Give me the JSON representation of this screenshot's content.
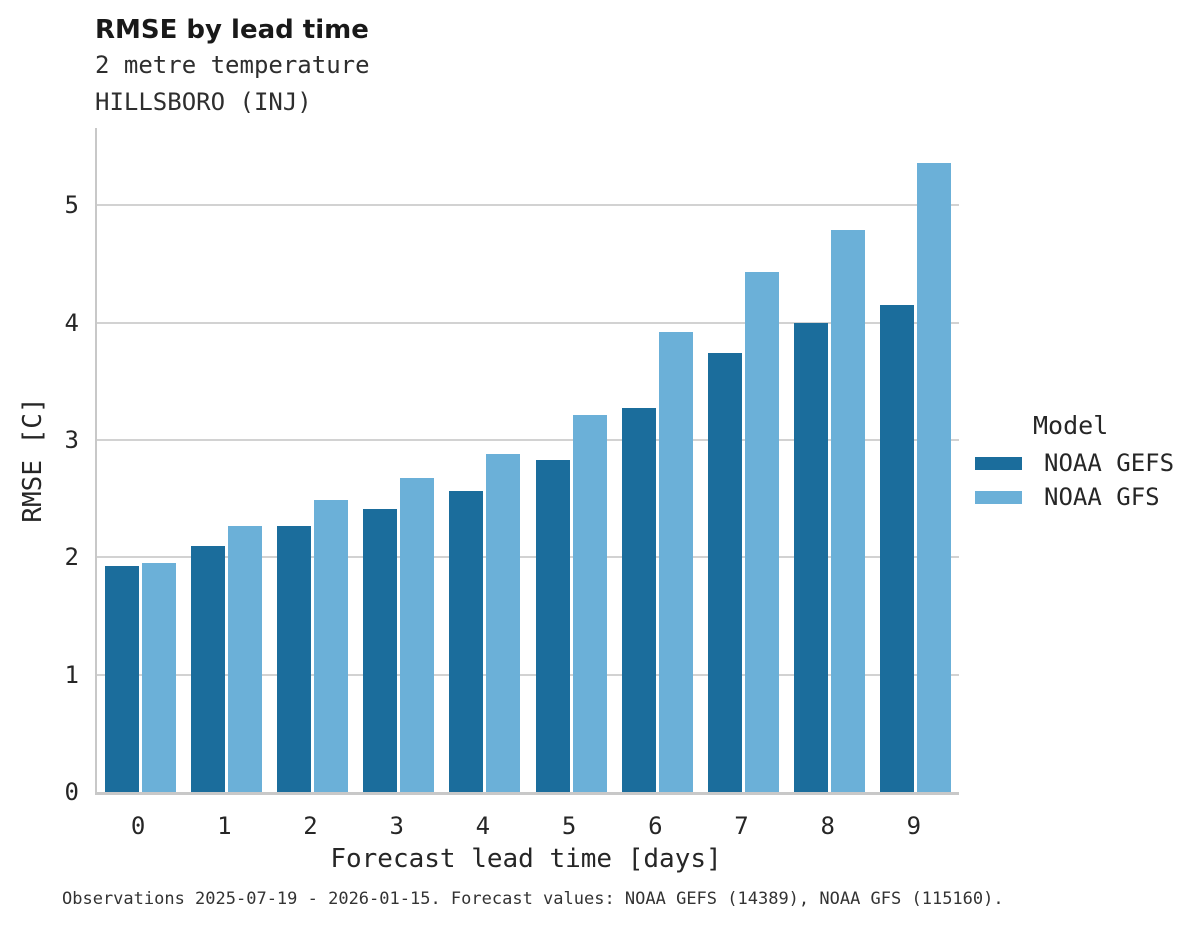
{
  "header": {
    "title": "RMSE by lead time",
    "subtitle_variable": "2 metre temperature",
    "subtitle_station": "HILLSBORO (INJ)"
  },
  "chart_data": {
    "type": "bar",
    "title": "RMSE by lead time",
    "subtitle": [
      "2 metre temperature",
      "HILLSBORO (INJ)"
    ],
    "categories": [
      "0",
      "1",
      "2",
      "3",
      "4",
      "5",
      "6",
      "7",
      "8",
      "9"
    ],
    "series": [
      {
        "name": "NOAA GEFS",
        "color": "#1b6d9c",
        "values": [
          1.93,
          2.1,
          2.27,
          2.41,
          2.57,
          2.83,
          3.27,
          3.74,
          4.0,
          4.15
        ]
      },
      {
        "name": "NOAA GFS",
        "color": "#6bb0d8",
        "values": [
          1.95,
          2.27,
          2.49,
          2.68,
          2.88,
          3.21,
          3.92,
          4.43,
          4.79,
          5.36
        ]
      }
    ],
    "xlabel": "Forecast lead time [days]",
    "ylabel": "RMSE [C]",
    "ylim": [
      0,
      5.66
    ],
    "yticks": [
      0,
      1,
      2,
      3,
      4,
      5
    ],
    "grid": "horizontal",
    "legend_position": "right"
  },
  "legend": {
    "title": "Model",
    "items": [
      {
        "label": "NOAA GEFS"
      },
      {
        "label": "NOAA GFS"
      }
    ]
  },
  "caption": "Observations 2025-07-19 - 2026-01-15. Forecast values: NOAA GEFS (14389), NOAA GFS (115160)."
}
